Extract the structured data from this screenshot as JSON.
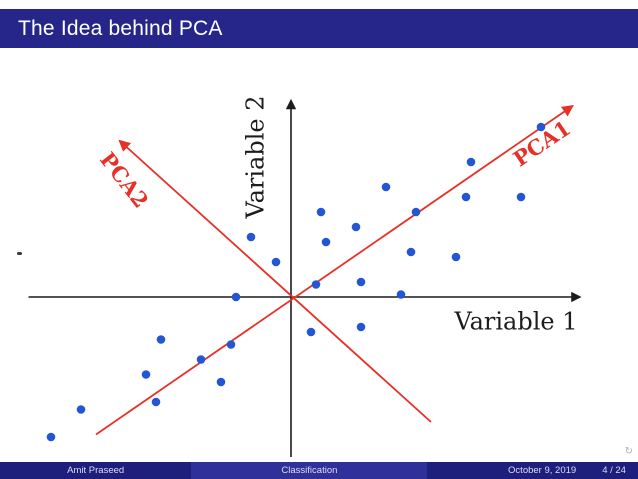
{
  "slide": {
    "title": "The Idea behind PCA",
    "footer": {
      "author": "Amit Praseed",
      "short_title": "Classification",
      "date": "October 9, 2019",
      "page": "4 / 24"
    },
    "nav_icon": "↻"
  },
  "colors": {
    "header_bg": "#26268a",
    "footer_left_bg": "#1e1e7d",
    "footer_center_bg": "#30309a",
    "footer_right_bg": "#1e1e7d",
    "footer_text": "#dcdcf5",
    "title_text": "#ffffff",
    "axis": "#1c1c1c",
    "dot": "#2456d4",
    "pca_line": "#e63128",
    "nav_icon": "#b0b0b0"
  },
  "chart_data": {
    "type": "scatter",
    "title": "",
    "xlabel": "Variable 1",
    "ylabel": "Variable 2",
    "xlim": [
      -5.25,
      5.75
    ],
    "ylim": [
      -3.2,
      3.9
    ],
    "grid": false,
    "legend": false,
    "points": [
      [
        5.0,
        3.4
      ],
      [
        3.6,
        2.7
      ],
      [
        1.9,
        2.2
      ],
      [
        3.5,
        2.0
      ],
      [
        4.6,
        2.0
      ],
      [
        0.6,
        1.7
      ],
      [
        2.5,
        1.7
      ],
      [
        1.3,
        1.4
      ],
      [
        -0.8,
        1.2
      ],
      [
        0.7,
        1.1
      ],
      [
        2.4,
        0.9
      ],
      [
        3.3,
        0.8
      ],
      [
        -0.3,
        0.7
      ],
      [
        0.5,
        0.25
      ],
      [
        1.4,
        0.3
      ],
      [
        -1.1,
        0.0
      ],
      [
        2.2,
        0.05
      ],
      [
        0.4,
        -0.7
      ],
      [
        1.4,
        -0.6
      ],
      [
        -2.6,
        -0.85
      ],
      [
        -1.2,
        -0.95
      ],
      [
        -1.8,
        -1.25
      ],
      [
        -2.9,
        -1.55
      ],
      [
        -1.4,
        -1.7
      ],
      [
        -2.7,
        -2.1
      ],
      [
        -4.2,
        -2.25
      ],
      [
        -4.8,
        -2.8
      ]
    ],
    "annotations": [
      {
        "label": "PCA1",
        "from": [
          -3.9,
          -2.75
        ],
        "to": [
          5.6,
          3.8
        ],
        "label_pos": [
          5.1,
          2.95
        ],
        "label_rotation": -34
      },
      {
        "label": "PCA2",
        "from": [
          2.8,
          -2.5
        ],
        "to": [
          -3.4,
          3.1
        ],
        "label_pos": [
          -3.45,
          2.25
        ],
        "label_rotation": 52
      }
    ],
    "axis_label_pos": {
      "x": [
        4.5,
        -0.65
      ],
      "y": [
        -0.55,
        2.8
      ]
    }
  }
}
